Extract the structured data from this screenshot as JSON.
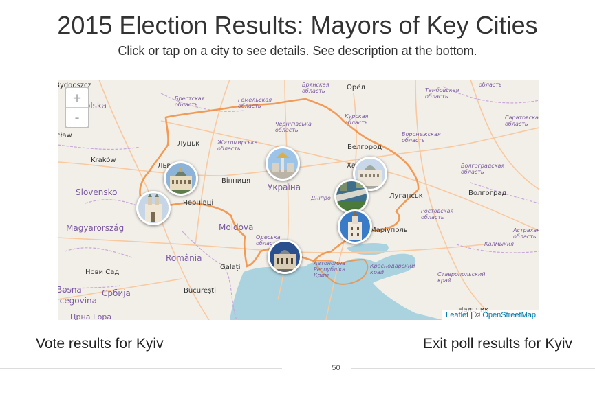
{
  "header": {
    "title": "2015 Election Results: Mayors of Key Cities",
    "subtitle": "Click or tap on a city to see details. See description at the bottom."
  },
  "map": {
    "zoom_in": "+",
    "zoom_out": "-",
    "labels": {
      "bydgoszcz": "Bydgoszcz",
      "polska": "olska",
      "brest": "Брестская\nобласть",
      "gomel": "Гомельская\nобласть",
      "bryansk": "Брянская\nобласть",
      "orel": "Орёл",
      "tambov": "Тамбовская\nобласть",
      "oblast_top": "область",
      "saratov": "Саратовская\nобласть",
      "kursk": "Курская\nобласть",
      "chernihiv": "Чернігівська\nобласть",
      "voronezh": "Воронежская\nобласть",
      "lodz": "cław",
      "lutsk": "Луцьк",
      "zhytomyr": "Житомирська\nобласть",
      "belgorod": "Белгород",
      "krakow": "Kraków",
      "lviv": "Льв",
      "vinnytsia": "Вінниця",
      "ukraina": "Україна",
      "kharkiv": "Хар",
      "volgograd_obl": "Волгоградская\nобласть",
      "slovensko": "Slovensko",
      "dnipro": "Дніпрo",
      "luhansk": "Луганськ",
      "volgograd": "Волгоград",
      "chernivtsi": "Чернівці",
      "rostov": "Ростовская\nобласть",
      "moldova": "Moldova",
      "magyarorszag": "Magyarország",
      "odesa": "Одеська\nобласть",
      "mariupol": "Маріуполь",
      "astrakhan": "Астрахан\nобласть",
      "kalmykia": "Калмыкия",
      "romania": "România",
      "galati": "Galați",
      "crimea": "Автономна\nРеспубліка\nКрим",
      "krasnodar": "Краснодарский\nкрай",
      "novi_sad": "Нови Сад",
      "stavropol": "Ставропольский\nкрай",
      "bosna": "Bosna",
      "bucuresti": "București",
      "hercegovina": "rcegovina",
      "srbija": "Србија",
      "crna_gora": "Црна Гора",
      "nalchik": "Нальчик"
    },
    "markers": [
      {
        "name": "Lviv"
      },
      {
        "name": "Ivano-Frankivsk"
      },
      {
        "name": "Kyiv"
      },
      {
        "name": "Kharkiv"
      },
      {
        "name": "Dnipropetrovsk"
      },
      {
        "name": "Mariupol"
      },
      {
        "name": "Odesa"
      }
    ],
    "attribution": {
      "leaflet": "Leaflet",
      "separator": " | © ",
      "osm": "OpenStreetMap"
    }
  },
  "links": {
    "vote": "Vote results for Kyiv",
    "exit": "Exit poll results for Kyiv"
  },
  "page_number": "50",
  "colors": {
    "land": "#f2efe9",
    "sea": "#aad3df",
    "border": "#f28c3c",
    "admin": "#c7a8d8",
    "road": "#f8c9a0"
  }
}
